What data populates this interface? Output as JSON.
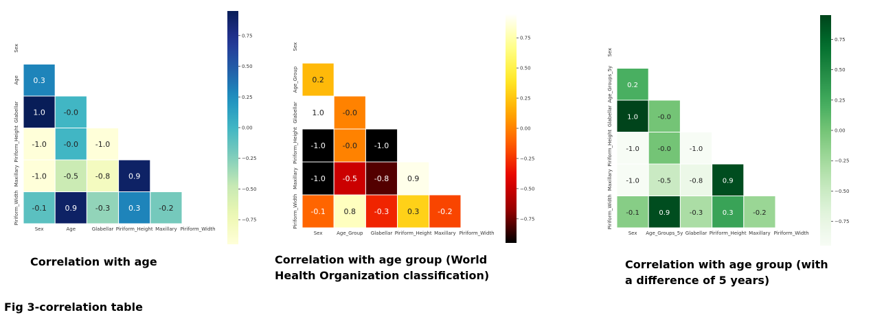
{
  "captions": {
    "panel0": "Correlation with age",
    "panel1": "Correlation with age group (World Health Organization classification)",
    "panel2": "Correlation with age group (with a difference of 5 years)",
    "figure": "Fig 3-correlation table"
  },
  "chart_data": [
    {
      "type": "heatmap",
      "colormap": "YlGnBu",
      "labels": [
        "Sex",
        "Age",
        "Glabellar",
        "Piriform_Height",
        "Maxillary",
        "Piriform_Width"
      ],
      "matrix": [
        [
          null,
          null,
          null,
          null,
          null,
          null
        ],
        [
          0.3,
          null,
          null,
          null,
          null,
          null
        ],
        [
          1.0,
          -0.0,
          null,
          null,
          null,
          null
        ],
        [
          -1.0,
          -0.0,
          -1.0,
          null,
          null,
          null
        ],
        [
          -1.0,
          -0.5,
          -0.8,
          0.9,
          null,
          null
        ],
        [
          -0.1,
          0.9,
          -0.3,
          0.3,
          -0.2,
          null
        ]
      ],
      "colorbar_ticks": [
        "0.75",
        "0.50",
        "0.25",
        "0.00",
        "−0.25",
        "−0.50",
        "−0.75"
      ],
      "colorbar_range": [
        -0.95,
        0.95
      ]
    },
    {
      "type": "heatmap",
      "colormap": "hot",
      "labels": [
        "Sex",
        "Age_Group",
        "Glabellar",
        "Piriform_Height",
        "Maxillary",
        "Piriform_Width"
      ],
      "matrix": [
        [
          null,
          null,
          null,
          null,
          null,
          null
        ],
        [
          0.2,
          null,
          null,
          null,
          null,
          null
        ],
        [
          1.0,
          -0.0,
          null,
          null,
          null,
          null
        ],
        [
          -1.0,
          -0.0,
          -1.0,
          null,
          null,
          null
        ],
        [
          -1.0,
          -0.5,
          -0.8,
          0.9,
          null,
          null
        ],
        [
          -0.1,
          0.8,
          -0.3,
          0.3,
          -0.2,
          null
        ]
      ],
      "colorbar_ticks": [
        "0.75",
        "0.50",
        "0.25",
        "0.00",
        "−0.25",
        "−0.50",
        "−0.75"
      ],
      "colorbar_range": [
        -0.95,
        0.95
      ]
    },
    {
      "type": "heatmap",
      "colormap": "Greens",
      "labels": [
        "Sex",
        "Age_Groups_5y",
        "Glabellar",
        "Piriform_Height",
        "Maxillary",
        "Piriform_Width"
      ],
      "matrix": [
        [
          null,
          null,
          null,
          null,
          null,
          null
        ],
        [
          0.2,
          null,
          null,
          null,
          null,
          null
        ],
        [
          1.0,
          -0.0,
          null,
          null,
          null,
          null
        ],
        [
          -1.0,
          -0.0,
          -1.0,
          null,
          null,
          null
        ],
        [
          -1.0,
          -0.5,
          -0.8,
          0.9,
          null,
          null
        ],
        [
          -0.1,
          0.9,
          -0.3,
          0.3,
          -0.2,
          null
        ]
      ],
      "colorbar_ticks": [
        "0.75",
        "0.50",
        "0.25",
        "0.00",
        "−0.25",
        "−0.50",
        "−0.75"
      ],
      "colorbar_range": [
        -0.95,
        0.95
      ]
    }
  ]
}
